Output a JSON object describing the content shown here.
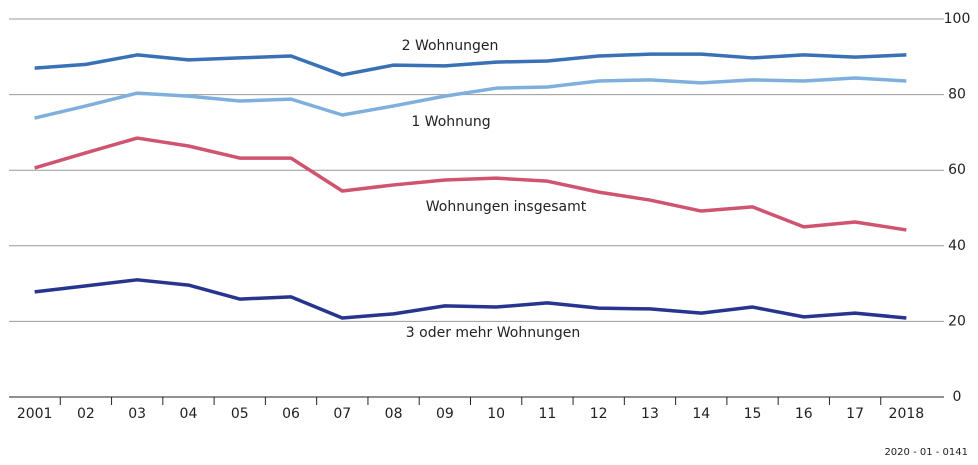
{
  "chart_data": {
    "type": "line",
    "categories": [
      "2001",
      "02",
      "03",
      "04",
      "05",
      "06",
      "07",
      "08",
      "09",
      "10",
      "11",
      "12",
      "13",
      "14",
      "15",
      "16",
      "17",
      "2018"
    ],
    "series": [
      {
        "name": "2 Wohnungen",
        "color": "#3a70b6",
        "values": [
          87,
          88,
          90.5,
          89.2,
          89.7,
          90.2,
          85.2,
          87.8,
          87.6,
          88.6,
          88.9,
          90.2,
          90.7,
          90.7,
          89.7,
          90.5,
          89.9,
          90.5
        ]
      },
      {
        "name": "1 Wohnung",
        "color": "#7fb0dd",
        "values": [
          73.8,
          77,
          80.4,
          79.6,
          78.3,
          78.8,
          74.6,
          77,
          79.6,
          81.7,
          82,
          83.6,
          83.9,
          83.1,
          83.9,
          83.6,
          84.4,
          83.6
        ]
      },
      {
        "name": "Wohnungen insgesamt",
        "color": "#d0546f",
        "values": [
          60.6,
          64.6,
          68.5,
          66.4,
          63.2,
          63.2,
          54.5,
          56.1,
          57.4,
          57.9,
          57.1,
          54.2,
          52.1,
          49.2,
          50.3,
          45,
          46.3,
          44.2
        ]
      },
      {
        "name": "3 oder mehr Wohnungen",
        "color": "#27358f",
        "values": [
          27.8,
          29.4,
          31,
          29.6,
          25.9,
          26.5,
          20.9,
          22,
          24.1,
          23.8,
          24.9,
          23.5,
          23.3,
          22.2,
          23.8,
          21.2,
          22.2,
          20.9
        ]
      }
    ],
    "ylim": [
      0,
      100
    ],
    "yticks": [
      0,
      20,
      40,
      60,
      80,
      100
    ],
    "grid": true,
    "source": "2020 - 01 - 0141"
  }
}
